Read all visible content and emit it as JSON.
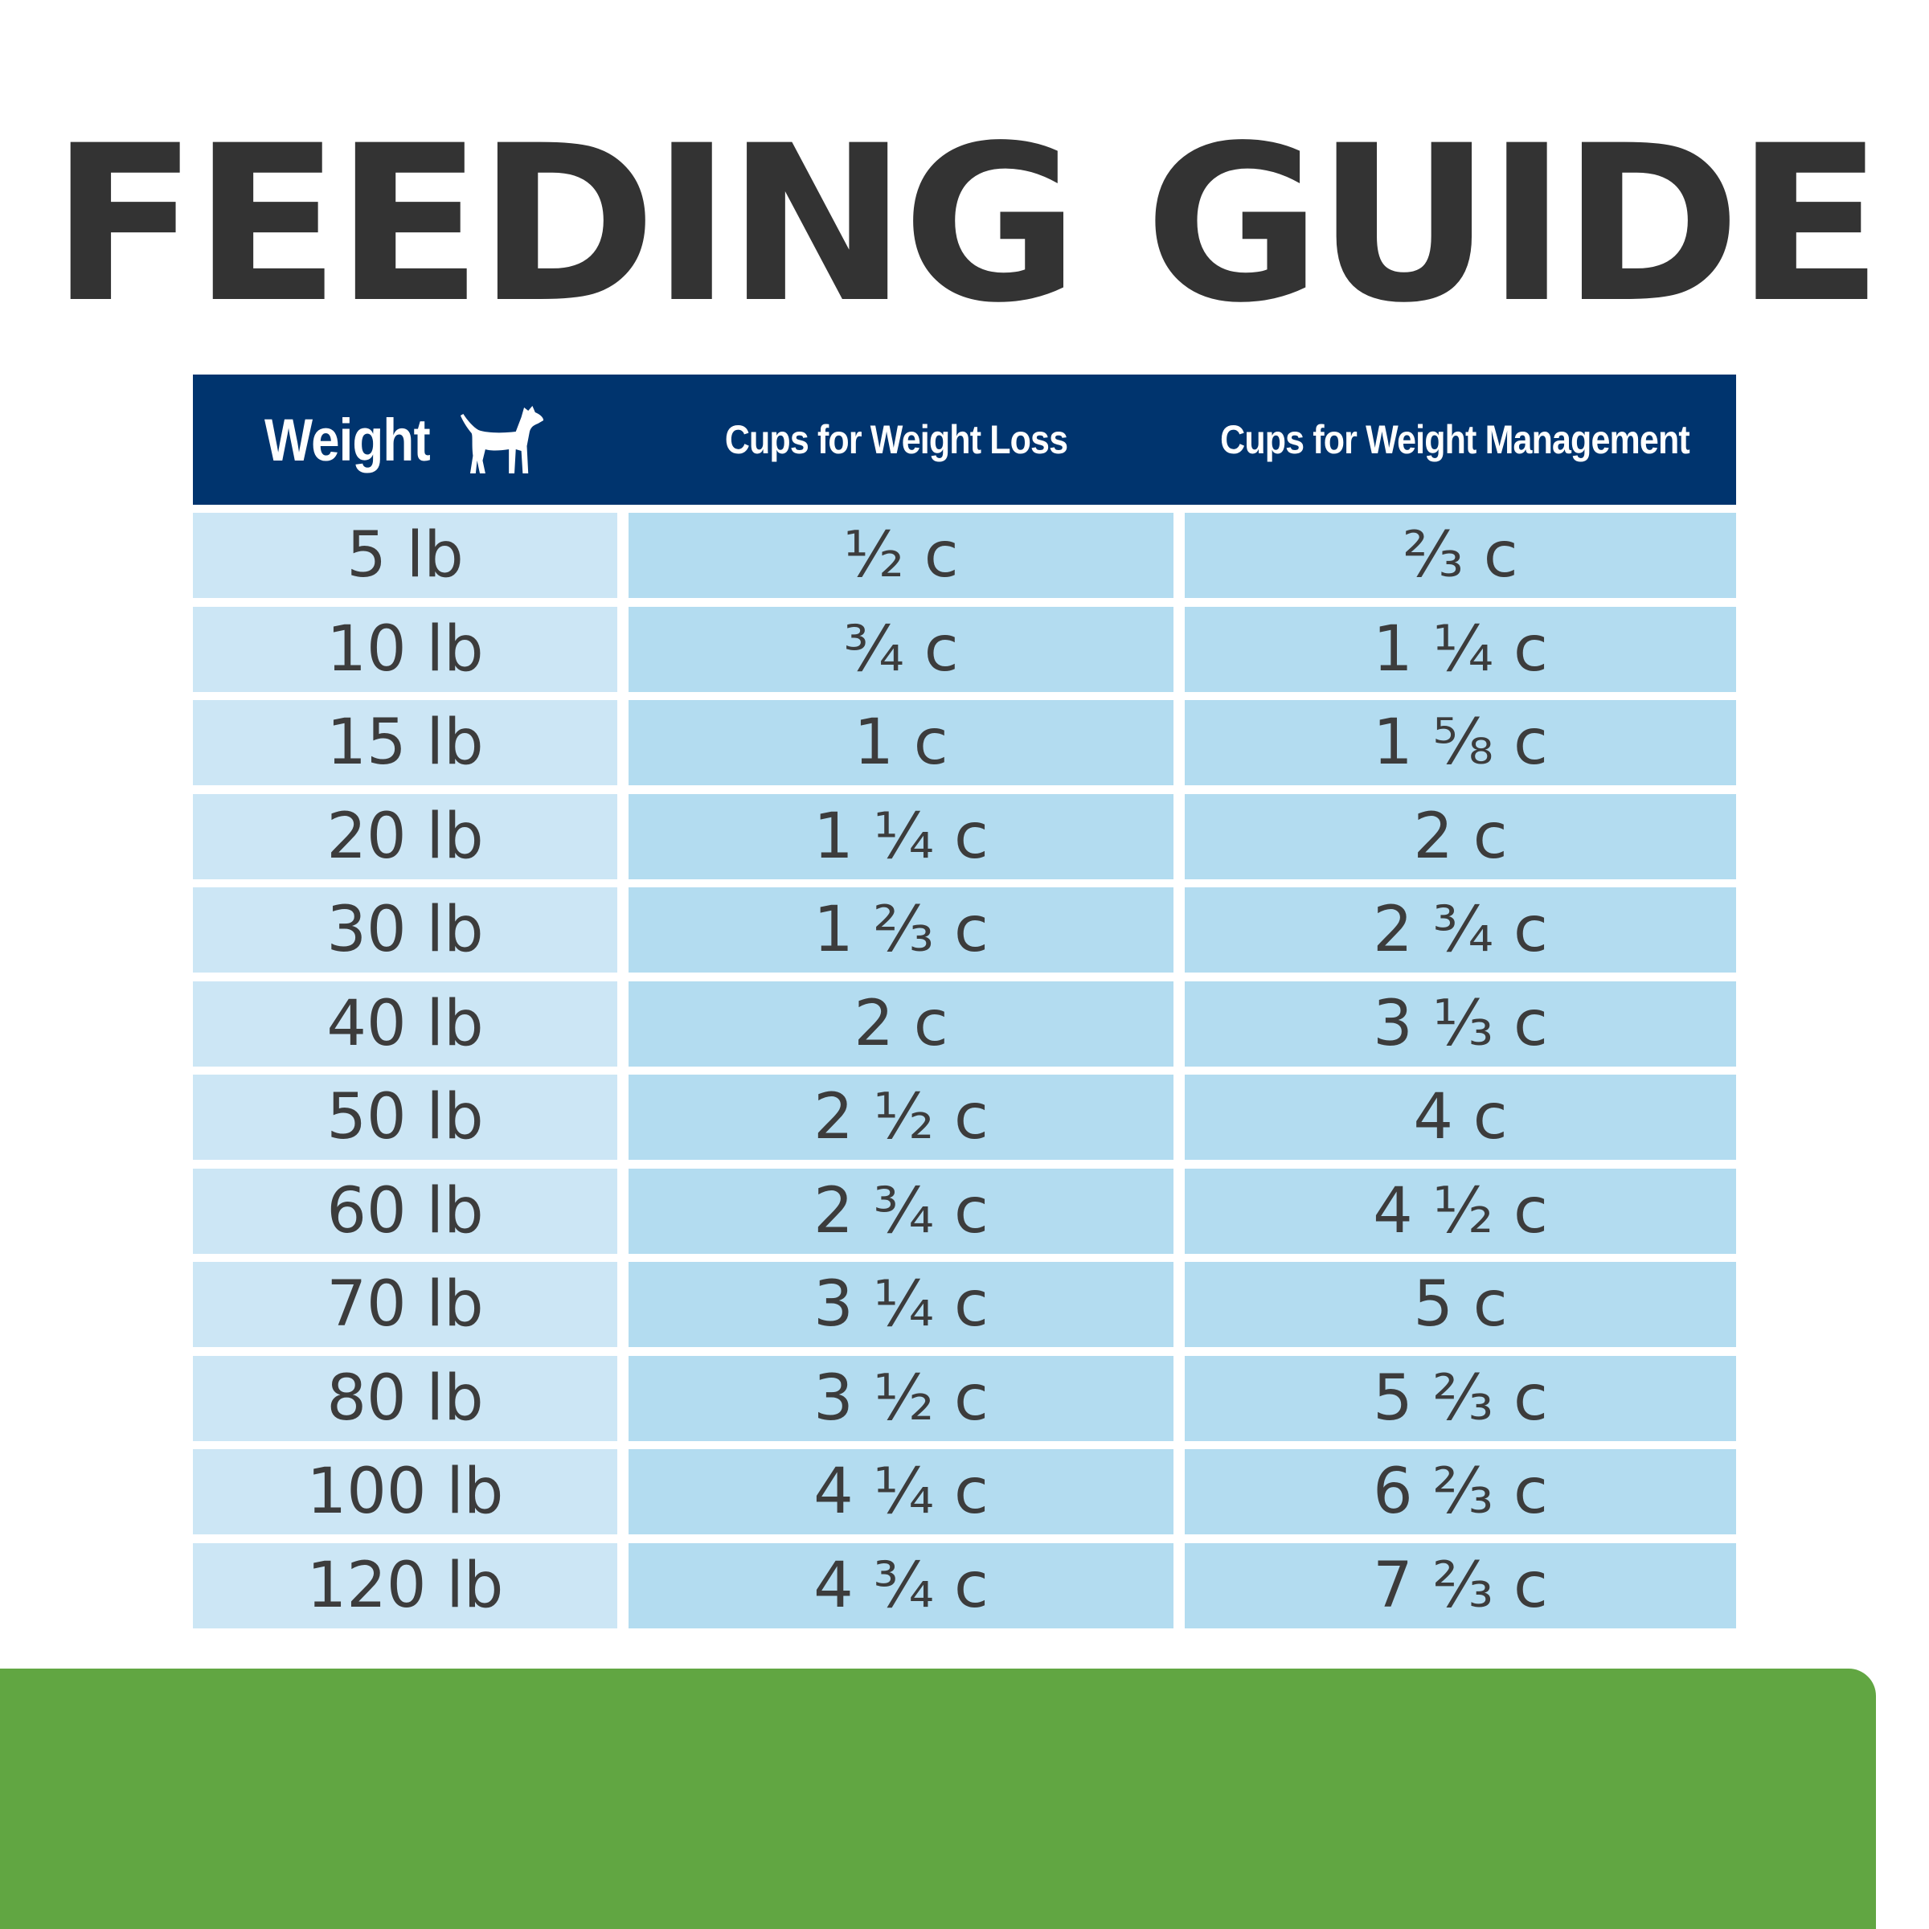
{
  "title": "FEEDING GUIDE",
  "table": {
    "headers": {
      "weight": "Weight",
      "loss": "Cups for Weight Loss",
      "management": "Cups for Weight Management"
    },
    "header_icon": "dog-icon",
    "colors": {
      "header_bg": "#00346e",
      "weight_col_bg": "#cce6f5",
      "value_col_bg": "#b3dcf0",
      "text": "#3c3c3c",
      "footer_green": "#61a642"
    },
    "rows": [
      {
        "weight": "5 lb",
        "loss": "½ c",
        "management": "⅔ c"
      },
      {
        "weight": "10 lb",
        "loss": "¾ c",
        "management": "1 ¼ c"
      },
      {
        "weight": "15 lb",
        "loss": "1 c",
        "management": "1 ⅝ c"
      },
      {
        "weight": "20 lb",
        "loss": "1 ¼ c",
        "management": "2 c"
      },
      {
        "weight": "30 lb",
        "loss": "1 ⅔ c",
        "management": "2 ¾ c"
      },
      {
        "weight": "40 lb",
        "loss": "2 c",
        "management": "3 ⅓ c"
      },
      {
        "weight": "50 lb",
        "loss": "2 ½ c",
        "management": "4 c"
      },
      {
        "weight": "60 lb",
        "loss": "2 ¾ c",
        "management": "4 ½ c"
      },
      {
        "weight": "70 lb",
        "loss": "3 ¼ c",
        "management": "5 c"
      },
      {
        "weight": "80 lb",
        "loss": "3 ½ c",
        "management": "5 ⅔ c"
      },
      {
        "weight": "100 lb",
        "loss": "4 ¼ c",
        "management": "6 ⅔ c"
      },
      {
        "weight": "120 lb",
        "loss": "4 ¾ c",
        "management": "7 ⅔ c"
      }
    ]
  }
}
